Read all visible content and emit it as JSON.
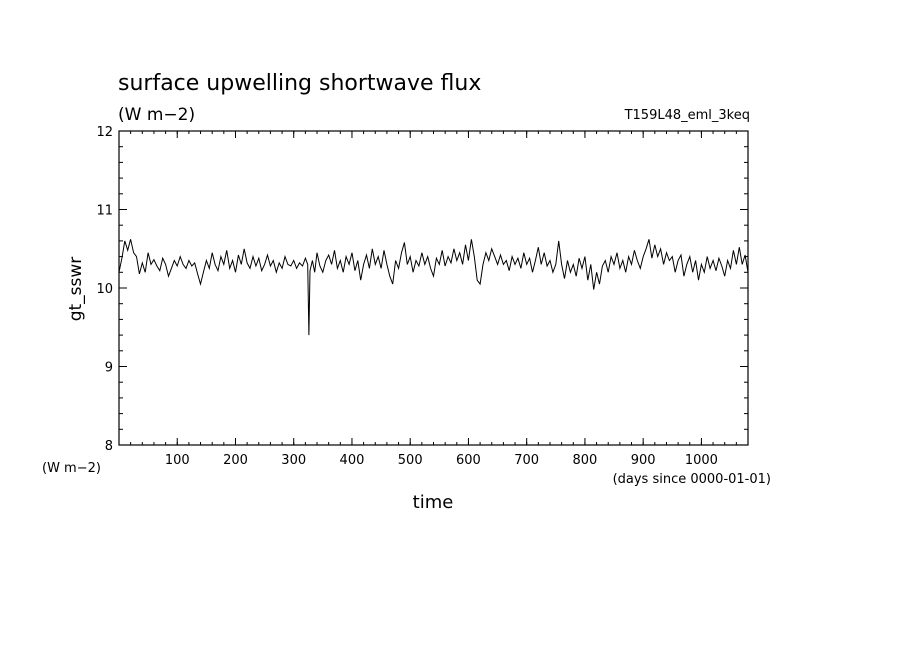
{
  "chart_data": {
    "type": "line",
    "title": "surface upwelling shortwave flux",
    "subtitle": "(W m−2)",
    "run_label": "T159L48_eml_3keq",
    "ylabel": "gt_sswr",
    "yunit": "(W m−2)",
    "xlabel": "time",
    "xunit": "(days since 0000-01-01)",
    "xlim": [
      0,
      1080
    ],
    "ylim": [
      8,
      12
    ],
    "xticks": [
      100,
      200,
      300,
      400,
      500,
      600,
      700,
      800,
      900,
      1000
    ],
    "yticks": [
      8,
      9,
      10,
      11,
      12
    ],
    "grid": false,
    "series": [
      {
        "color": "#000000",
        "points": [
          [
            0,
            10.2
          ],
          [
            5,
            10.38
          ],
          [
            10,
            10.6
          ],
          [
            15,
            10.48
          ],
          [
            20,
            10.62
          ],
          [
            25,
            10.45
          ],
          [
            30,
            10.4
          ],
          [
            35,
            10.18
          ],
          [
            40,
            10.32
          ],
          [
            45,
            10.2
          ],
          [
            50,
            10.45
          ],
          [
            55,
            10.3
          ],
          [
            60,
            10.36
          ],
          [
            65,
            10.28
          ],
          [
            70,
            10.22
          ],
          [
            75,
            10.38
          ],
          [
            80,
            10.3
          ],
          [
            85,
            10.15
          ],
          [
            90,
            10.25
          ],
          [
            95,
            10.35
          ],
          [
            100,
            10.28
          ],
          [
            105,
            10.4
          ],
          [
            110,
            10.3
          ],
          [
            115,
            10.25
          ],
          [
            120,
            10.35
          ],
          [
            125,
            10.28
          ],
          [
            130,
            10.32
          ],
          [
            135,
            10.18
          ],
          [
            140,
            10.05
          ],
          [
            145,
            10.2
          ],
          [
            150,
            10.35
          ],
          [
            155,
            10.25
          ],
          [
            160,
            10.45
          ],
          [
            165,
            10.3
          ],
          [
            170,
            10.22
          ],
          [
            175,
            10.4
          ],
          [
            180,
            10.3
          ],
          [
            185,
            10.48
          ],
          [
            190,
            10.25
          ],
          [
            195,
            10.35
          ],
          [
            200,
            10.2
          ],
          [
            205,
            10.42
          ],
          [
            210,
            10.3
          ],
          [
            215,
            10.5
          ],
          [
            220,
            10.32
          ],
          [
            225,
            10.25
          ],
          [
            230,
            10.4
          ],
          [
            235,
            10.28
          ],
          [
            240,
            10.38
          ],
          [
            245,
            10.22
          ],
          [
            250,
            10.3
          ],
          [
            255,
            10.42
          ],
          [
            260,
            10.28
          ],
          [
            265,
            10.35
          ],
          [
            270,
            10.2
          ],
          [
            275,
            10.32
          ],
          [
            280,
            10.25
          ],
          [
            285,
            10.4
          ],
          [
            290,
            10.3
          ],
          [
            295,
            10.28
          ],
          [
            300,
            10.35
          ],
          [
            305,
            10.25
          ],
          [
            310,
            10.32
          ],
          [
            315,
            10.28
          ],
          [
            320,
            10.38
          ],
          [
            324,
            10.3
          ],
          [
            326,
            9.4
          ],
          [
            328,
            10.22
          ],
          [
            332,
            10.35
          ],
          [
            336,
            10.2
          ],
          [
            340,
            10.45
          ],
          [
            345,
            10.28
          ],
          [
            350,
            10.2
          ],
          [
            355,
            10.35
          ],
          [
            360,
            10.42
          ],
          [
            365,
            10.3
          ],
          [
            370,
            10.48
          ],
          [
            375,
            10.25
          ],
          [
            380,
            10.35
          ],
          [
            385,
            10.2
          ],
          [
            390,
            10.4
          ],
          [
            395,
            10.3
          ],
          [
            400,
            10.45
          ],
          [
            405,
            10.22
          ],
          [
            410,
            10.35
          ],
          [
            415,
            10.1
          ],
          [
            420,
            10.3
          ],
          [
            425,
            10.42
          ],
          [
            430,
            10.25
          ],
          [
            435,
            10.5
          ],
          [
            440,
            10.3
          ],
          [
            445,
            10.4
          ],
          [
            450,
            10.25
          ],
          [
            455,
            10.48
          ],
          [
            460,
            10.3
          ],
          [
            465,
            10.15
          ],
          [
            470,
            10.05
          ],
          [
            475,
            10.35
          ],
          [
            480,
            10.25
          ],
          [
            485,
            10.45
          ],
          [
            490,
            10.58
          ],
          [
            495,
            10.3
          ],
          [
            500,
            10.4
          ],
          [
            505,
            10.2
          ],
          [
            510,
            10.35
          ],
          [
            515,
            10.28
          ],
          [
            520,
            10.45
          ],
          [
            525,
            10.3
          ],
          [
            530,
            10.4
          ],
          [
            535,
            10.25
          ],
          [
            540,
            10.15
          ],
          [
            545,
            10.38
          ],
          [
            550,
            10.3
          ],
          [
            555,
            10.48
          ],
          [
            560,
            10.28
          ],
          [
            565,
            10.4
          ],
          [
            570,
            10.32
          ],
          [
            575,
            10.5
          ],
          [
            580,
            10.35
          ],
          [
            585,
            10.45
          ],
          [
            590,
            10.3
          ],
          [
            595,
            10.55
          ],
          [
            600,
            10.35
          ],
          [
            605,
            10.62
          ],
          [
            610,
            10.4
          ],
          [
            615,
            10.1
          ],
          [
            620,
            10.05
          ],
          [
            625,
            10.3
          ],
          [
            630,
            10.45
          ],
          [
            635,
            10.35
          ],
          [
            640,
            10.5
          ],
          [
            645,
            10.4
          ],
          [
            650,
            10.3
          ],
          [
            655,
            10.42
          ],
          [
            660,
            10.3
          ],
          [
            665,
            10.35
          ],
          [
            670,
            10.22
          ],
          [
            675,
            10.4
          ],
          [
            680,
            10.3
          ],
          [
            685,
            10.38
          ],
          [
            690,
            10.25
          ],
          [
            695,
            10.45
          ],
          [
            700,
            10.3
          ],
          [
            705,
            10.38
          ],
          [
            710,
            10.2
          ],
          [
            715,
            10.35
          ],
          [
            720,
            10.52
          ],
          [
            725,
            10.3
          ],
          [
            730,
            10.45
          ],
          [
            735,
            10.28
          ],
          [
            740,
            10.35
          ],
          [
            745,
            10.2
          ],
          [
            750,
            10.3
          ],
          [
            755,
            10.6
          ],
          [
            760,
            10.3
          ],
          [
            765,
            10.12
          ],
          [
            770,
            10.35
          ],
          [
            775,
            10.2
          ],
          [
            780,
            10.3
          ],
          [
            785,
            10.15
          ],
          [
            790,
            10.38
          ],
          [
            795,
            10.25
          ],
          [
            800,
            10.4
          ],
          [
            805,
            10.1
          ],
          [
            810,
            10.3
          ],
          [
            815,
            9.98
          ],
          [
            820,
            10.2
          ],
          [
            825,
            10.05
          ],
          [
            830,
            10.28
          ],
          [
            835,
            10.35
          ],
          [
            840,
            10.2
          ],
          [
            845,
            10.4
          ],
          [
            850,
            10.3
          ],
          [
            855,
            10.45
          ],
          [
            860,
            10.25
          ],
          [
            865,
            10.35
          ],
          [
            870,
            10.2
          ],
          [
            875,
            10.4
          ],
          [
            880,
            10.3
          ],
          [
            885,
            10.48
          ],
          [
            890,
            10.35
          ],
          [
            895,
            10.25
          ],
          [
            900,
            10.4
          ],
          [
            905,
            10.5
          ],
          [
            910,
            10.62
          ],
          [
            915,
            10.38
          ],
          [
            920,
            10.55
          ],
          [
            925,
            10.4
          ],
          [
            930,
            10.5
          ],
          [
            935,
            10.3
          ],
          [
            940,
            10.45
          ],
          [
            945,
            10.35
          ],
          [
            950,
            10.4
          ],
          [
            955,
            10.2
          ],
          [
            960,
            10.35
          ],
          [
            965,
            10.42
          ],
          [
            970,
            10.15
          ],
          [
            975,
            10.3
          ],
          [
            980,
            10.4
          ],
          [
            985,
            10.2
          ],
          [
            990,
            10.35
          ],
          [
            995,
            10.1
          ],
          [
            1000,
            10.3
          ],
          [
            1005,
            10.2
          ],
          [
            1010,
            10.4
          ],
          [
            1015,
            10.25
          ],
          [
            1020,
            10.35
          ],
          [
            1025,
            10.22
          ],
          [
            1030,
            10.38
          ],
          [
            1035,
            10.28
          ],
          [
            1040,
            10.15
          ],
          [
            1045,
            10.35
          ],
          [
            1050,
            10.25
          ],
          [
            1055,
            10.48
          ],
          [
            1060,
            10.3
          ],
          [
            1065,
            10.52
          ],
          [
            1070,
            10.3
          ],
          [
            1075,
            10.42
          ],
          [
            1080,
            10.2
          ]
        ]
      }
    ]
  }
}
